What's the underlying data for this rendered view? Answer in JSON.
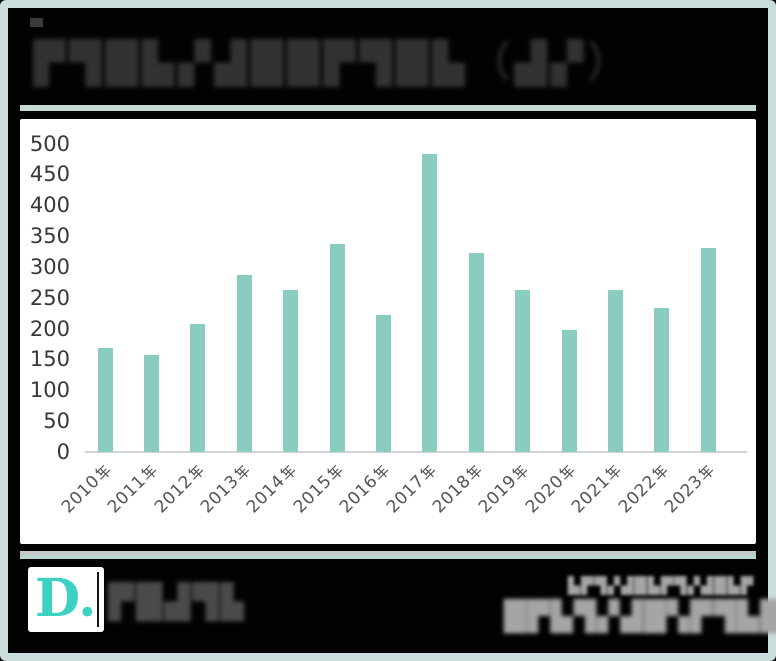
{
  "header": {
    "corner_mark": "censored-pixelated-fragment",
    "title_censored": "▛▜█▙▞▟██▛▜█▙（▟▞）"
  },
  "footer": {
    "logo_text": "D.",
    "brand_censored": "▛█▟▜▙",
    "right_line1": "▙▛▜▞▟█▙▛▜▞▟█▙▛",
    "right_line2": "█▛▙▜▞▟█▚▛▜▙█▟"
  },
  "colors": {
    "bar": "#8accc0",
    "accent_line": "#c7dbd7",
    "frame_border": "#cbdddd",
    "logo": "#3bd2c1",
    "axis_line": "#d4d4d4",
    "background": "#020202",
    "card": "#ffffff"
  },
  "chart_data": {
    "type": "bar",
    "title": "",
    "categories": [
      "2010年",
      "2011年",
      "2012年",
      "2013年",
      "2014年",
      "2015年",
      "2016年",
      "2017年",
      "2018年",
      "2019年",
      "2020年",
      "2021年",
      "2022年",
      "2023年"
    ],
    "values": [
      168,
      158,
      208,
      287,
      262,
      337,
      222,
      483,
      322,
      262,
      197,
      262,
      233,
      330
    ],
    "xlabel": "",
    "ylabel": "",
    "ylim": [
      0,
      500
    ],
    "yticks": [
      0,
      50,
      100,
      150,
      200,
      250,
      300,
      350,
      400,
      450,
      500
    ],
    "grid": false,
    "legend": false,
    "bar_color": "#8accc0"
  }
}
